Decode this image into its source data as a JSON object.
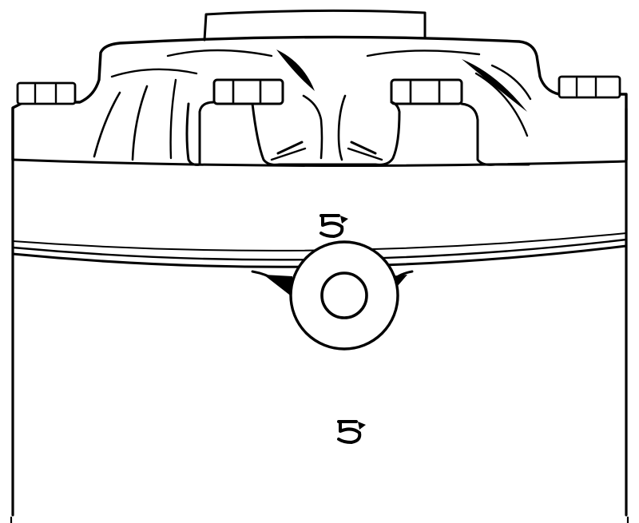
{
  "figure": {
    "callouts": [
      {
        "id": "upper",
        "label": "5"
      },
      {
        "id": "lower",
        "label": "5"
      }
    ],
    "colors": {
      "ink": "#000000",
      "paper": "#ffffff"
    },
    "icons": [
      "rotation-arrow-icon",
      "rotation-arrow-icon"
    ]
  }
}
